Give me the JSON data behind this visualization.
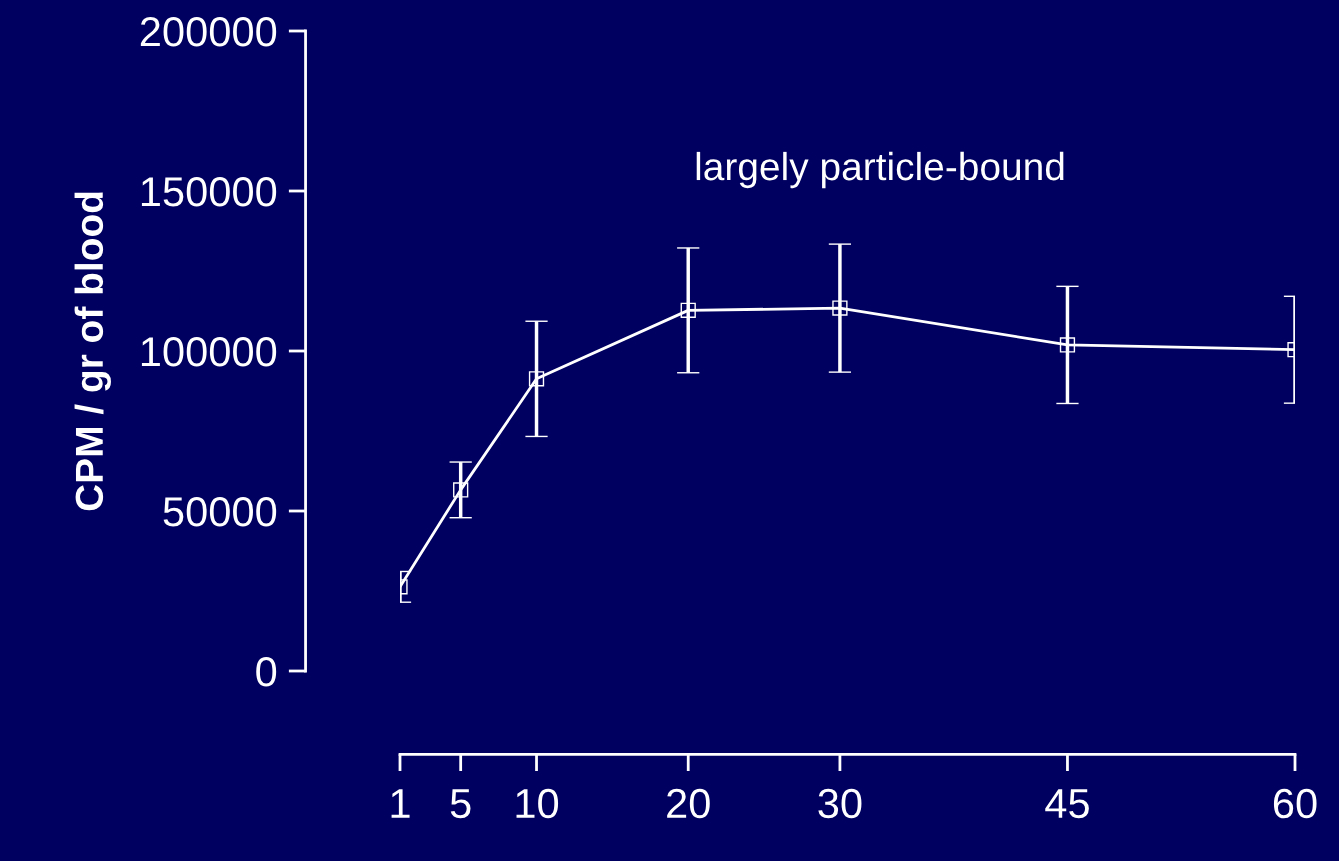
{
  "chart_data": {
    "type": "line",
    "ylabel": "CPM / gr of blood",
    "x": [
      1,
      5,
      10,
      20,
      30,
      45,
      60
    ],
    "series": [
      {
        "color": "#ffffff",
        "values": [
          26300,
          56600,
          91300,
          112700,
          113400,
          101900,
          100400
        ],
        "errors": [
          4800,
          8700,
          18000,
          19500,
          20000,
          18300,
          16700
        ]
      }
    ],
    "xlim": [
      1,
      60
    ],
    "xticks": [
      1,
      5,
      10,
      20,
      30,
      45,
      60
    ],
    "ylim": [
      0,
      200000
    ],
    "yticks": [
      0,
      50000,
      100000,
      150000,
      200000
    ],
    "marker": "square",
    "line_style": "solid",
    "grid": false,
    "legend": false,
    "annotations": [
      "largely particle-bound"
    ]
  }
}
